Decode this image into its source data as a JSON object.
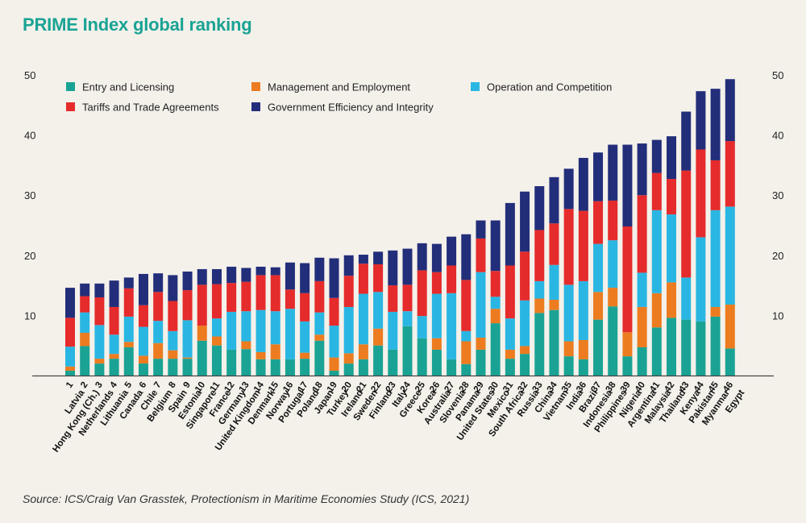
{
  "chart_data": {
    "type": "bar",
    "stacked": true,
    "title": "PRIME Index global ranking",
    "source": "Source: ICS/Craig Van Grasstek, Protectionism in Maritime Economies Study (ICS, 2021)",
    "ylim": [
      0,
      50
    ],
    "yticks": [
      10,
      20,
      30,
      40,
      50
    ],
    "grid": false,
    "legend_position": "top-left",
    "ranks": [
      "1",
      "2",
      "3",
      "4",
      "5",
      "6",
      "7",
      "8",
      "9",
      "10",
      "11",
      "12",
      "13",
      "14",
      "15",
      "16",
      "17",
      "18",
      "19",
      "20",
      "21",
      "22",
      "23",
      "24",
      "25",
      "26",
      "27",
      "28",
      "29",
      "30",
      "31",
      "32",
      "33",
      "34",
      "35",
      "36",
      "37",
      "38",
      "39",
      "40",
      "41",
      "42",
      "43",
      "44",
      "45",
      "46"
    ],
    "categories": [
      "Latvia",
      "Hong Kong (Ch.)",
      "Netherlands",
      "Lithuania",
      "Canada",
      "Chile",
      "Belgium",
      "Spain",
      "Estonia",
      "Singapore",
      "France",
      "Germany",
      "United Kingdom",
      "Denmark",
      "Norway",
      "Portugal",
      "Poland",
      "Japan",
      "Turkey",
      "Ireland",
      "Sweden",
      "Finland",
      "Italy",
      "Greece",
      "Korea",
      "Australia",
      "Slovenia",
      "Panama",
      "United States",
      "Mexico",
      "South Africa",
      "Russia",
      "China",
      "Vietnam",
      "India",
      "Brazil",
      "Indonesia",
      "Philippines",
      "Nigeria",
      "Argentina",
      "Malaysia",
      "Thailand",
      "Kenya",
      "Pakistan",
      "Myanmar",
      "Egypt"
    ],
    "series": [
      {
        "name": "Entry and Licensing",
        "color": "#1aa394",
        "values": [
          0.8,
          4.9,
          2.0,
          2.8,
          4.7,
          2.0,
          2.8,
          2.8,
          2.8,
          5.8,
          5.0,
          4.3,
          4.4,
          2.7,
          2.7,
          2.7,
          2.8,
          5.8,
          0.8,
          2.0,
          2.7,
          5.0,
          4.3,
          8.2,
          6.2,
          4.3,
          2.7,
          1.9,
          4.3,
          8.7,
          2.8,
          3.6,
          10.4,
          10.9,
          3.2,
          2.7,
          9.3,
          11.5,
          3.2,
          4.7,
          8.0,
          9.6,
          9.3,
          9.0,
          9.8,
          4.5
        ]
      },
      {
        "name": "Management and Employment",
        "color": "#ec7c1f",
        "values": [
          0.7,
          2.2,
          0.8,
          0.8,
          0.9,
          1.3,
          2.6,
          1.4,
          0.2,
          2.5,
          1.5,
          0.0,
          1.3,
          1.2,
          2.5,
          0.0,
          1.0,
          1.0,
          2.2,
          1.7,
          2.5,
          2.8,
          0.0,
          0.0,
          0.0,
          1.9,
          0.0,
          3.8,
          2.0,
          2.4,
          1.5,
          1.3,
          2.4,
          1.7,
          2.5,
          3.2,
          4.6,
          3.1,
          4.0,
          6.7,
          5.7,
          5.9,
          0.0,
          0.0,
          1.6,
          7.3
        ]
      },
      {
        "name": "Operation and Competition",
        "color": "#2ab6e3",
        "values": [
          3.3,
          3.4,
          5.6,
          3.2,
          4.2,
          4.8,
          3.7,
          3.2,
          6.2,
          0.0,
          3.0,
          6.3,
          5.0,
          7.0,
          5.5,
          8.4,
          5.2,
          3.7,
          5.3,
          7.7,
          8.4,
          6.1,
          6.3,
          2.5,
          3.7,
          7.4,
          11.0,
          1.7,
          10.9,
          2.0,
          5.2,
          7.6,
          2.9,
          5.8,
          9.4,
          9.8,
          8.0,
          7.9,
          0.0,
          5.7,
          13.8,
          11.3,
          7.0,
          14.0,
          16.1,
          16.3
        ]
      },
      {
        "name": "Tariffs and Trade Agreements",
        "color": "#e52b2b",
        "values": [
          4.8,
          2.7,
          4.6,
          4.6,
          4.7,
          3.6,
          4.8,
          5.0,
          5.0,
          6.8,
          5.7,
          4.8,
          4.9,
          5.8,
          6.0,
          3.2,
          4.7,
          5.2,
          4.6,
          5.2,
          5.0,
          4.6,
          4.4,
          4.4,
          7.6,
          3.6,
          4.6,
          8.5,
          5.6,
          4.3,
          8.8,
          8.1,
          8.5,
          6.9,
          12.6,
          11.7,
          7.1,
          6.6,
          17.6,
          12.9,
          6.2,
          5.9,
          17.8,
          14.6,
          8.3,
          10.9
        ]
      },
      {
        "name": "Government Efficiency and Integrity",
        "color": "#232e7a",
        "values": [
          5.0,
          2.1,
          2.3,
          4.4,
          1.8,
          5.2,
          3.1,
          4.3,
          3.1,
          2.6,
          2.5,
          2.7,
          2.3,
          1.4,
          1.3,
          4.5,
          5.0,
          3.9,
          6.6,
          3.4,
          1.5,
          2.1,
          5.8,
          6.0,
          4.5,
          4.7,
          4.8,
          7.6,
          3.0,
          8.4,
          10.4,
          10.0,
          7.3,
          7.7,
          6.7,
          8.8,
          8.1,
          9.3,
          13.6,
          8.6,
          5.5,
          7.1,
          9.8,
          9.7,
          11.9,
          10.3
        ]
      }
    ]
  },
  "page": {
    "title": "PRIME Index global ranking",
    "source": "Source: ICS/Craig Van Grasstek, Protectionism in Maritime Economies Study (ICS, 2021)"
  }
}
